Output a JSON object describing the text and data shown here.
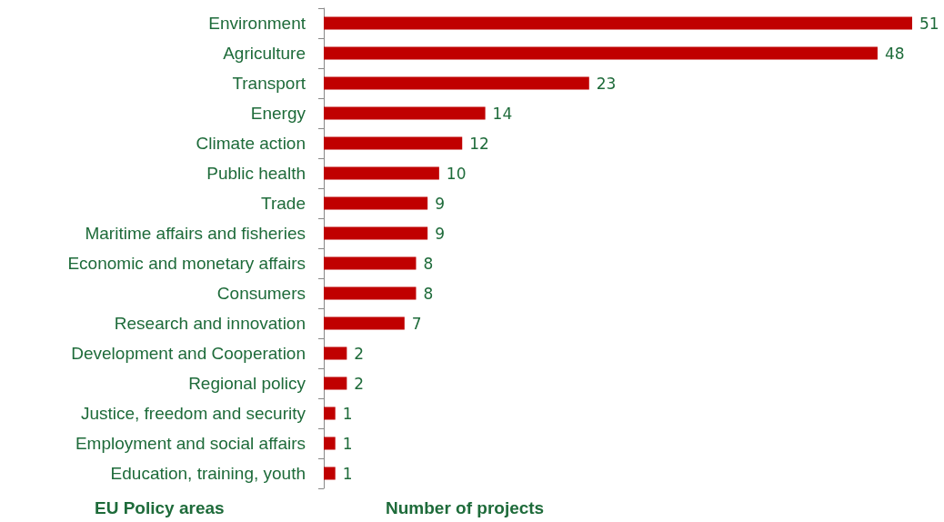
{
  "chart_data": {
    "type": "bar",
    "orientation": "horizontal",
    "xlabel": "Number of projects",
    "ylabel": "EU Policy areas",
    "categories": [
      "Environment",
      "Agriculture",
      "Transport",
      "Energy",
      "Climate action",
      "Public health",
      "Trade",
      "Maritime affairs and fisheries",
      "Economic and monetary affairs",
      "Consumers",
      "Research and innovation",
      "Development and Cooperation",
      "Regional policy",
      "Justice, freedom and security",
      "Employment and social affairs",
      "Education, training, youth"
    ],
    "values": [
      51,
      48,
      23,
      14,
      12,
      10,
      9,
      9,
      8,
      8,
      7,
      2,
      2,
      1,
      1,
      1
    ],
    "color": "#c00000",
    "data_labels": true,
    "tick_labels": "y"
  }
}
